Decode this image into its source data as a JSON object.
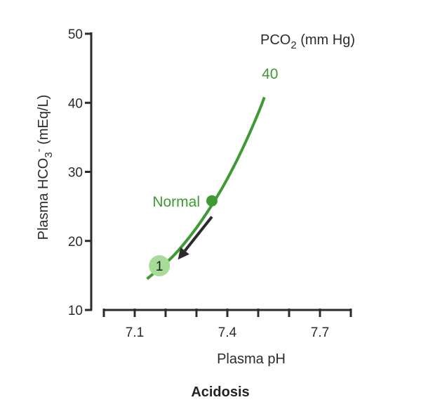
{
  "chart_data": {
    "type": "line",
    "caption": "Acidosis",
    "xlabel": "Plasma pH",
    "ylabel_main": "Plasma HCO",
    "ylabel_sub": "3",
    "ylabel_sup": "-",
    "ylabel_unit": " (mEq/L)",
    "legend_title_main": "PCO",
    "legend_title_sub": "2",
    "legend_title_unit": " (mm Hg)",
    "xlim": [
      7.0,
      7.8
    ],
    "ylim": [
      10,
      50
    ],
    "x_ticks": [
      7.1,
      7.4,
      7.7
    ],
    "x_minor_ticks": [
      7.0,
      7.2,
      7.3,
      7.5,
      7.6,
      7.8
    ],
    "x_tick_labels": [
      "7.1",
      "7.4",
      "7.7"
    ],
    "y_ticks": [
      10,
      20,
      30,
      40,
      50
    ],
    "y_tick_labels": [
      "10",
      "20",
      "30",
      "40",
      "50"
    ],
    "series": [
      {
        "name": "40",
        "color": "#3f9a35",
        "x": [
          7.14,
          7.18,
          7.22,
          7.26,
          7.3,
          7.34,
          7.38,
          7.42,
          7.46,
          7.5,
          7.52
        ],
        "y": [
          14.5,
          16.0,
          17.6,
          19.6,
          21.9,
          24.5,
          27.4,
          30.7,
          34.4,
          38.5,
          40.8
        ]
      }
    ],
    "annotations": {
      "normal": {
        "label": "Normal",
        "x": 7.35,
        "y": 25.8,
        "color": "#3f9a35"
      },
      "marker": {
        "label": "1",
        "x": 7.18,
        "y": 16.4,
        "fill": "#a7dc98"
      },
      "arrow": {
        "from": [
          7.35,
          23.5
        ],
        "to": [
          7.24,
          17.3
        ],
        "color": "#2b2b2b"
      }
    }
  }
}
